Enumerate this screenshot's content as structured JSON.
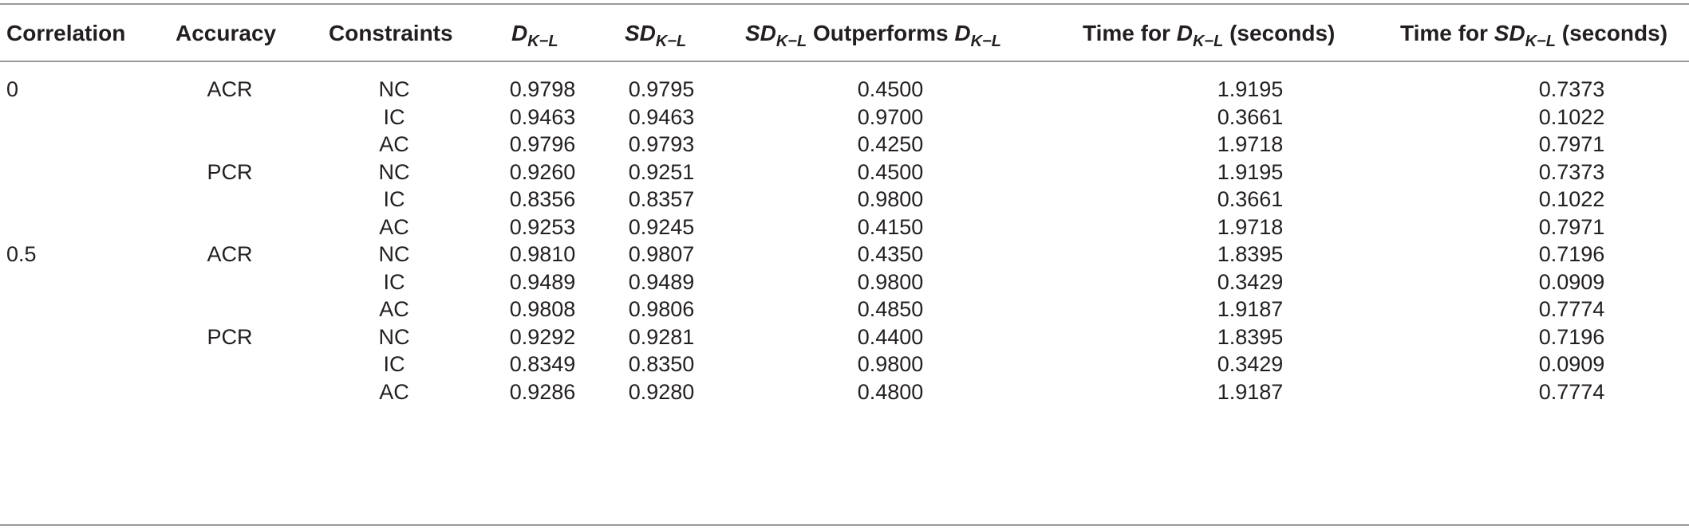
{
  "header": {
    "correlation": "Correlation",
    "accuracy": "Accuracy",
    "constraints": "Constraints",
    "dkl_main": "D",
    "dkl_sub": "K−L",
    "sdkl_main": "SD",
    "sdkl_sub": "K−L",
    "outperforms_sd_main": "SD",
    "outperforms_sd_sub": "K−L",
    "outperforms_text": "Outperforms",
    "outperforms_d_main": "D",
    "outperforms_d_sub": "K−L",
    "time_d_prefix": "Time for",
    "time_d_main": "D",
    "time_d_sub": "K−L",
    "time_d_suffix": "(seconds)",
    "time_sd_prefix": "Time for",
    "time_sd_main": "SD",
    "time_sd_sub": "K−L",
    "time_sd_suffix": "(seconds)"
  },
  "rows": [
    {
      "correlation": "0",
      "accuracy": "ACR",
      "constraints": "NC",
      "dkl": "0.9798",
      "sdkl": "0.9795",
      "outperforms": "0.4500",
      "time_d": "1.9195",
      "time_sd": "0.7373"
    },
    {
      "correlation": "",
      "accuracy": "",
      "constraints": "IC",
      "dkl": "0.9463",
      "sdkl": "0.9463",
      "outperforms": "0.9700",
      "time_d": "0.3661",
      "time_sd": "0.1022"
    },
    {
      "correlation": "",
      "accuracy": "",
      "constraints": "AC",
      "dkl": "0.9796",
      "sdkl": "0.9793",
      "outperforms": "0.4250",
      "time_d": "1.9718",
      "time_sd": "0.7971"
    },
    {
      "correlation": "",
      "accuracy": "PCR",
      "constraints": "NC",
      "dkl": "0.9260",
      "sdkl": "0.9251",
      "outperforms": "0.4500",
      "time_d": "1.9195",
      "time_sd": "0.7373"
    },
    {
      "correlation": "",
      "accuracy": "",
      "constraints": "IC",
      "dkl": "0.8356",
      "sdkl": "0.8357",
      "outperforms": "0.9800",
      "time_d": "0.3661",
      "time_sd": "0.1022"
    },
    {
      "correlation": "",
      "accuracy": "",
      "constraints": "AC",
      "dkl": "0.9253",
      "sdkl": "0.9245",
      "outperforms": "0.4150",
      "time_d": "1.9718",
      "time_sd": "0.7971"
    },
    {
      "correlation": "0.5",
      "accuracy": "ACR",
      "constraints": "NC",
      "dkl": "0.9810",
      "sdkl": "0.9807",
      "outperforms": "0.4350",
      "time_d": "1.8395",
      "time_sd": "0.7196"
    },
    {
      "correlation": "",
      "accuracy": "",
      "constraints": "IC",
      "dkl": "0.9489",
      "sdkl": "0.9489",
      "outperforms": "0.9800",
      "time_d": "0.3429",
      "time_sd": "0.0909"
    },
    {
      "correlation": "",
      "accuracy": "",
      "constraints": "AC",
      "dkl": "0.9808",
      "sdkl": "0.9806",
      "outperforms": "0.4850",
      "time_d": "1.9187",
      "time_sd": "0.7774"
    },
    {
      "correlation": "",
      "accuracy": "PCR",
      "constraints": "NC",
      "dkl": "0.9292",
      "sdkl": "0.9281",
      "outperforms": "0.4400",
      "time_d": "1.8395",
      "time_sd": "0.7196"
    },
    {
      "correlation": "",
      "accuracy": "",
      "constraints": "IC",
      "dkl": "0.8349",
      "sdkl": "0.8350",
      "outperforms": "0.9800",
      "time_d": "0.3429",
      "time_sd": "0.0909"
    },
    {
      "correlation": "",
      "accuracy": "",
      "constraints": "AC",
      "dkl": "0.9286",
      "sdkl": "0.9280",
      "outperforms": "0.4800",
      "time_d": "1.9187",
      "time_sd": "0.7774"
    }
  ]
}
